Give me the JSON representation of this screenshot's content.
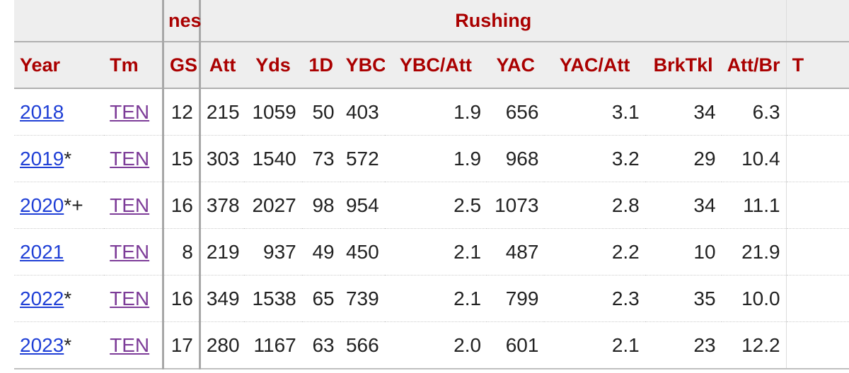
{
  "groups": {
    "partial_label": "nes",
    "rushing_label": "Rushing"
  },
  "columns": [
    "Year",
    "Tm",
    "GS",
    "Att",
    "Yds",
    "1D",
    "YBC",
    "YBC/Att",
    "YAC",
    "YAC/Att",
    "BrkTkl",
    "Att/Br",
    "T"
  ],
  "rows": [
    {
      "year": "2018",
      "marker": "",
      "tm": "TEN",
      "gs": "12",
      "att": "215",
      "yds": "1059",
      "fd": "50",
      "ybc": "403",
      "ybc_att": "1.9",
      "yac": "656",
      "yac_att": "3.1",
      "brktkl": "34",
      "att_br": "6.3"
    },
    {
      "year": "2019",
      "marker": "*",
      "tm": "TEN",
      "gs": "15",
      "att": "303",
      "yds": "1540",
      "fd": "73",
      "ybc": "572",
      "ybc_att": "1.9",
      "yac": "968",
      "yac_att": "3.2",
      "brktkl": "29",
      "att_br": "10.4"
    },
    {
      "year": "2020",
      "marker": "*+",
      "tm": "TEN",
      "gs": "16",
      "att": "378",
      "yds": "2027",
      "fd": "98",
      "ybc": "954",
      "ybc_att": "2.5",
      "yac": "1073",
      "yac_att": "2.8",
      "brktkl": "34",
      "att_br": "11.1"
    },
    {
      "year": "2021",
      "marker": "",
      "tm": "TEN",
      "gs": "8",
      "att": "219",
      "yds": "937",
      "fd": "49",
      "ybc": "450",
      "ybc_att": "2.1",
      "yac": "487",
      "yac_att": "2.2",
      "brktkl": "10",
      "att_br": "21.9"
    },
    {
      "year": "2022",
      "marker": "*",
      "tm": "TEN",
      "gs": "16",
      "att": "349",
      "yds": "1538",
      "fd": "65",
      "ybc": "739",
      "ybc_att": "2.1",
      "yac": "799",
      "yac_att": "2.3",
      "brktkl": "35",
      "att_br": "10.0"
    },
    {
      "year": "2023",
      "marker": "*",
      "tm": "TEN",
      "gs": "17",
      "att": "280",
      "yds": "1167",
      "fd": "63",
      "ybc": "566",
      "ybc_att": "2.0",
      "yac": "601",
      "yac_att": "2.1",
      "brktkl": "23",
      "att_br": "12.2"
    }
  ],
  "colors": {
    "header_text": "#aa0000",
    "header_bg": "#eeeeee",
    "year_link": "#1f3fd6",
    "team_link": "#7d3c98"
  }
}
